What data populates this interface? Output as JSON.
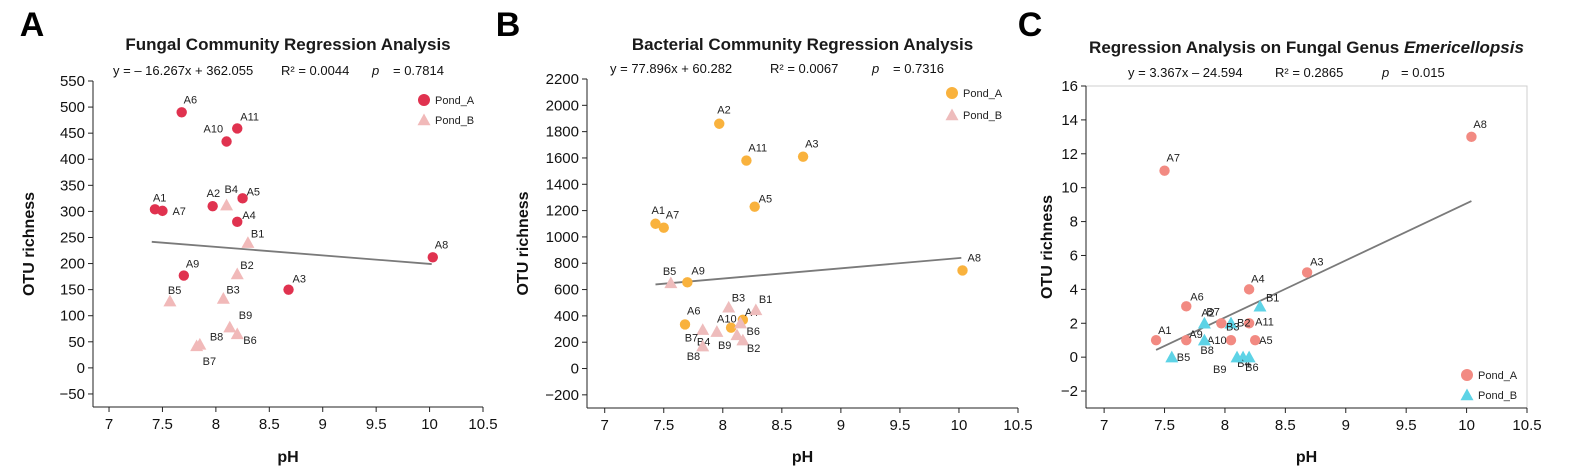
{
  "chart_data": [
    {
      "type": "scatter",
      "panel": "A",
      "title": "Fungal Community Regression Analysis",
      "title_italic": "",
      "equation": "y = –  16.267x + 362.055",
      "r2": "R² = 0.0044",
      "p_symbol": "p",
      "p_value": "= 0.7814",
      "xlabel": "pH",
      "ylabel": "OTU richness",
      "xlim": [
        6.85,
        10.5
      ],
      "ylim": [
        -75,
        550
      ],
      "xticks": [
        7,
        7.5,
        8,
        8.5,
        9,
        9.5,
        10,
        10.5
      ],
      "xtick_labels": [
        "7",
        "7.5",
        "8",
        "8.5",
        "9",
        "9.5",
        "10",
        "10.5"
      ],
      "yticks": [
        -50,
        0,
        50,
        100,
        150,
        200,
        250,
        300,
        350,
        400,
        450,
        500,
        550
      ],
      "ytick_labels": [
        "−50",
        "0",
        "50",
        "100",
        "150",
        "200",
        "250",
        "300",
        "350",
        "400",
        "450",
        "500",
        "550"
      ],
      "grid": false,
      "frame": "left-bottom",
      "regression": {
        "slope": -16.267,
        "intercept": 362.055,
        "x_range": [
          7.4,
          10.02
        ]
      },
      "legend_position": "top-right",
      "series": [
        {
          "name": "Pond_A",
          "marker": "circle",
          "color": "#e0324f",
          "points": [
            {
              "label": "A1",
              "x": 7.43,
              "y": 304
            },
            {
              "label": "A2",
              "x": 7.97,
              "y": 310
            },
            {
              "label": "A3",
              "x": 8.68,
              "y": 150
            },
            {
              "label": "A4",
              "x": 8.2,
              "y": 280
            },
            {
              "label": "A5",
              "x": 8.25,
              "y": 325
            },
            {
              "label": "A6",
              "x": 7.68,
              "y": 490
            },
            {
              "label": "A7",
              "x": 7.5,
              "y": 301
            },
            {
              "label": "A8",
              "x": 10.03,
              "y": 212
            },
            {
              "label": "A9",
              "x": 7.7,
              "y": 177
            },
            {
              "label": "A10",
              "x": 8.1,
              "y": 434
            },
            {
              "label": "A11",
              "x": 8.2,
              "y": 459
            }
          ]
        },
        {
          "name": "Pond_B",
          "marker": "triangle",
          "color": "#f1b9b9",
          "points": [
            {
              "label": "B1",
              "x": 8.3,
              "y": 240
            },
            {
              "label": "B2",
              "x": 8.2,
              "y": 180
            },
            {
              "label": "B3",
              "x": 8.07,
              "y": 133
            },
            {
              "label": "B4",
              "x": 8.1,
              "y": 312
            },
            {
              "label": "B5",
              "x": 7.57,
              "y": 128
            },
            {
              "label": "B6",
              "x": 8.2,
              "y": 65
            },
            {
              "label": "B7",
              "x": 7.82,
              "y": 42
            },
            {
              "label": "B8",
              "x": 7.85,
              "y": 45
            },
            {
              "label": "B9",
              "x": 8.13,
              "y": 78
            }
          ]
        }
      ]
    },
    {
      "type": "scatter",
      "panel": "B",
      "title": "Bacterial Community Regression Analysis",
      "title_italic": "",
      "equation": "y = 77.896x + 60.282",
      "r2": "R² = 0.0067",
      "p_symbol": "p",
      "p_value": "= 0.7316",
      "xlabel": "pH",
      "ylabel": "OTU richness",
      "xlim": [
        6.85,
        10.5
      ],
      "ylim": [
        -300,
        2200
      ],
      "xticks": [
        7,
        7.5,
        8,
        8.5,
        9,
        9.5,
        10,
        10.5
      ],
      "xtick_labels": [
        "7",
        "7.5",
        "8",
        "8.5",
        "9",
        "9.5",
        "10",
        "10.5"
      ],
      "yticks": [
        -200,
        0,
        200,
        400,
        600,
        800,
        1000,
        1200,
        1400,
        1600,
        1800,
        2000,
        2200
      ],
      "ytick_labels": [
        "−200",
        "0",
        "200",
        "400",
        "600",
        "800",
        "1000",
        "1200",
        "1400",
        "1600",
        "1800",
        "2000",
        "2200"
      ],
      "grid": false,
      "frame": "left-bottom",
      "regression": {
        "slope": 77.896,
        "intercept": 60.282,
        "x_range": [
          7.43,
          10.02
        ]
      },
      "legend_position": "top-right",
      "series": [
        {
          "name": "Pond_A",
          "marker": "circle",
          "color": "#f9b23d",
          "points": [
            {
              "label": "A1",
              "x": 7.43,
              "y": 1100
            },
            {
              "label": "A2",
              "x": 7.97,
              "y": 1860
            },
            {
              "label": "A3",
              "x": 8.68,
              "y": 1610
            },
            {
              "label": "A4",
              "x": 8.17,
              "y": 370
            },
            {
              "label": "A5",
              "x": 8.27,
              "y": 1230
            },
            {
              "label": "A6",
              "x": 7.68,
              "y": 335
            },
            {
              "label": "A7",
              "x": 7.5,
              "y": 1070
            },
            {
              "label": "A8",
              "x": 10.03,
              "y": 745
            },
            {
              "label": "A9",
              "x": 7.7,
              "y": 655
            },
            {
              "label": "A10",
              "x": 8.07,
              "y": 310
            },
            {
              "label": "A11",
              "x": 8.2,
              "y": 1580
            }
          ]
        },
        {
          "name": "Pond_B",
          "marker": "triangle",
          "color": "#eebcbc",
          "points": [
            {
              "label": "B1",
              "x": 8.28,
              "y": 445
            },
            {
              "label": "B2",
              "x": 8.17,
              "y": 215
            },
            {
              "label": "B3",
              "x": 8.05,
              "y": 465
            },
            {
              "label": "B4",
              "x": 7.95,
              "y": 280
            },
            {
              "label": "B5",
              "x": 7.56,
              "y": 650
            },
            {
              "label": "B6",
              "x": 8.15,
              "y": 345
            },
            {
              "label": "B7",
              "x": 7.83,
              "y": 295
            },
            {
              "label": "B8",
              "x": 7.83,
              "y": 170
            },
            {
              "label": "B9",
              "x": 8.12,
              "y": 255
            }
          ]
        }
      ]
    },
    {
      "type": "scatter",
      "panel": "C",
      "title": "Regression Analysis on Fungal Genus ",
      "title_italic": "Emericellopsis",
      "equation": "y = 3.367x – 24.594",
      "r2": "R² = 0.2865",
      "p_symbol": "p",
      "p_value": "= 0.015",
      "xlabel": "pH",
      "ylabel": "OTU richness",
      "xlim": [
        6.85,
        10.5
      ],
      "ylim": [
        -3,
        16
      ],
      "xticks": [
        7,
        7.5,
        8,
        8.5,
        9,
        9.5,
        10,
        10.5
      ],
      "xtick_labels": [
        "7",
        "7.5",
        "8",
        "8.5",
        "9",
        "9.5",
        "10",
        "10.5"
      ],
      "yticks": [
        -2,
        0,
        2,
        4,
        6,
        8,
        10,
        12,
        14,
        16
      ],
      "ytick_labels": [
        "−2",
        "0",
        "2",
        "4",
        "6",
        "8",
        "10",
        "12",
        "14",
        "16"
      ],
      "grid": false,
      "frame": "box",
      "regression": {
        "slope": 3.367,
        "intercept": -24.594,
        "x_range": [
          7.43,
          10.04
        ]
      },
      "legend_position": "bottom-right",
      "series": [
        {
          "name": "Pond_A",
          "marker": "circle",
          "color": "#f28a82",
          "points": [
            {
              "label": "A1",
              "x": 7.43,
              "y": 1
            },
            {
              "label": "A2",
              "x": 7.97,
              "y": 2
            },
            {
              "label": "A3",
              "x": 8.68,
              "y": 5
            },
            {
              "label": "A4",
              "x": 8.2,
              "y": 4
            },
            {
              "label": "A5",
              "x": 8.25,
              "y": 1
            },
            {
              "label": "A6",
              "x": 7.68,
              "y": 3
            },
            {
              "label": "A7",
              "x": 7.5,
              "y": 11
            },
            {
              "label": "A8",
              "x": 10.04,
              "y": 13
            },
            {
              "label": "A9",
              "x": 7.68,
              "y": 1
            },
            {
              "label": "A10",
              "x": 8.05,
              "y": 1
            },
            {
              "label": "A11",
              "x": 8.2,
              "y": 2
            }
          ]
        },
        {
          "name": "Pond_B",
          "marker": "triangle",
          "color": "#5dd3e6",
          "points": [
            {
              "label": "B1",
              "x": 8.29,
              "y": 3
            },
            {
              "label": "B2",
              "x": 8.05,
              "y": 2
            },
            {
              "label": "B3",
              "x": 8.05,
              "y": 2
            },
            {
              "label": "B4",
              "x": 8.15,
              "y": 0
            },
            {
              "label": "B5",
              "x": 7.56,
              "y": 0
            },
            {
              "label": "B6",
              "x": 8.2,
              "y": 0
            },
            {
              "label": "B7",
              "x": 7.83,
              "y": 2
            },
            {
              "label": "B8",
              "x": 7.83,
              "y": 1
            },
            {
              "label": "B9",
              "x": 8.1,
              "y": 0
            }
          ]
        }
      ]
    }
  ]
}
